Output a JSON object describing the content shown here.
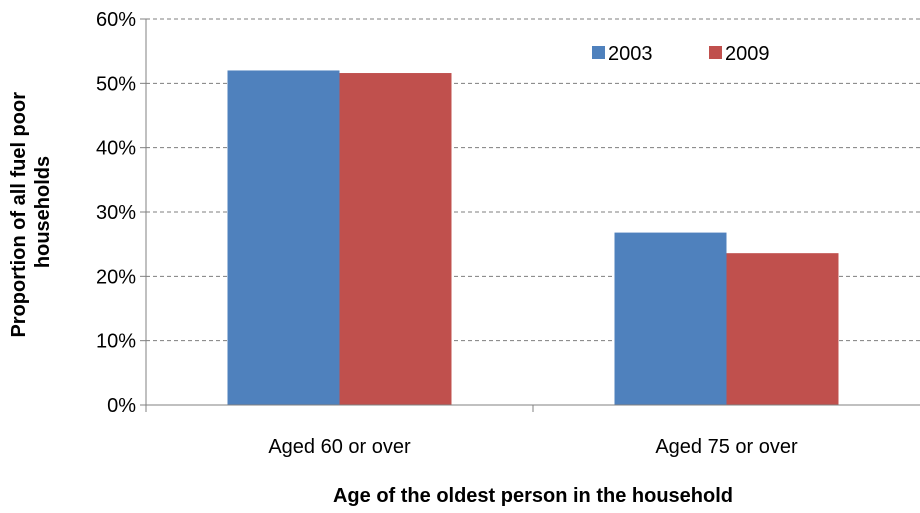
{
  "chart_data": {
    "type": "bar",
    "title": "",
    "xlabel": "Age of the oldest person in the household",
    "ylabel": "Proportion of all fuel poor households",
    "ylabel_lines": [
      "Proportion of all fuel poor",
      "households"
    ],
    "categories": [
      "Aged 60 or over",
      "Aged 75 or over"
    ],
    "series": [
      {
        "name": "2003",
        "color": "#4f81bd",
        "values": [
          52,
          26.8
        ]
      },
      {
        "name": "2009",
        "color": "#c0504d",
        "values": [
          51.6,
          23.6
        ]
      }
    ],
    "ylim": [
      0,
      60
    ],
    "yticks": [
      0,
      10,
      20,
      30,
      40,
      50,
      60
    ],
    "ytick_labels": [
      "0%",
      "10%",
      "20%",
      "30%",
      "40%",
      "50%",
      "60%"
    ],
    "value_unit": "%",
    "grid": true,
    "legend_position": "top-right"
  }
}
